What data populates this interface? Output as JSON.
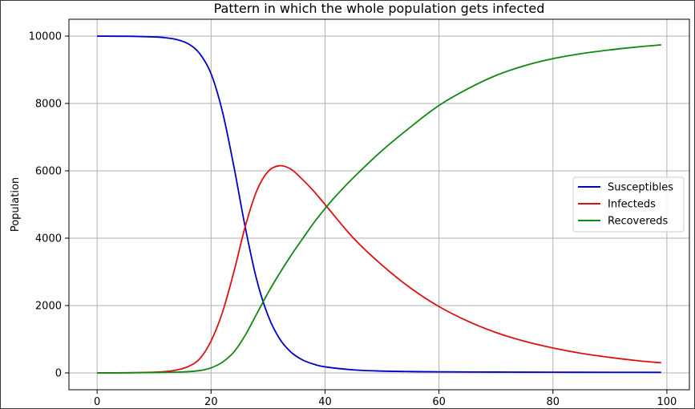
{
  "chart_data": {
    "type": "line",
    "title": "Pattern in which the whole population gets infected",
    "xlabel": "",
    "ylabel": "Population",
    "xlim": [
      -4.95,
      103.95
    ],
    "ylim": [
      -500,
      10500
    ],
    "x_ticks": [
      0,
      20,
      40,
      60,
      80,
      100
    ],
    "y_ticks": [
      0,
      2000,
      4000,
      6000,
      8000,
      10000
    ],
    "grid": true,
    "legend_position": "center-right",
    "series": [
      {
        "name": "Susceptibles",
        "color": "#0000cc",
        "x": [
          0,
          5,
          10,
          12,
          14,
          16,
          18,
          20,
          22,
          24,
          26,
          28,
          30,
          32,
          34,
          36,
          38,
          40,
          45,
          50,
          55,
          60,
          70,
          80,
          90,
          99
        ],
        "values": [
          9999,
          9995,
          9975,
          9950,
          9895,
          9770,
          9480,
          8880,
          7750,
          6130,
          4320,
          2770,
          1700,
          1020,
          620,
          390,
          260,
          180,
          90,
          55,
          40,
          32,
          25,
          20,
          18,
          16
        ]
      },
      {
        "name": "Infecteds",
        "color": "#dd1111",
        "x": [
          0,
          5,
          10,
          12,
          14,
          16,
          18,
          20,
          22,
          24,
          26,
          28,
          30,
          32,
          34,
          36,
          38,
          40,
          45,
          50,
          55,
          60,
          65,
          70,
          75,
          80,
          85,
          90,
          95,
          99
        ],
        "values": [
          1,
          4,
          20,
          40,
          90,
          190,
          420,
          950,
          1800,
          3000,
          4350,
          5400,
          5980,
          6150,
          6050,
          5750,
          5400,
          5000,
          4000,
          3200,
          2520,
          1970,
          1540,
          1200,
          940,
          740,
          580,
          460,
          360,
          300
        ]
      },
      {
        "name": "Recovereds",
        "color": "#118811",
        "x": [
          0,
          5,
          10,
          15,
          18,
          20,
          22,
          24,
          26,
          28,
          30,
          32,
          34,
          36,
          38,
          40,
          42,
          45,
          50,
          55,
          60,
          65,
          70,
          75,
          80,
          85,
          90,
          95,
          99
        ],
        "values": [
          0,
          3,
          10,
          30,
          70,
          150,
          320,
          620,
          1120,
          1750,
          2380,
          2950,
          3480,
          3970,
          4450,
          4880,
          5270,
          5800,
          6600,
          7300,
          7940,
          8430,
          8830,
          9120,
          9330,
          9480,
          9590,
          9680,
          9740
        ]
      }
    ]
  }
}
